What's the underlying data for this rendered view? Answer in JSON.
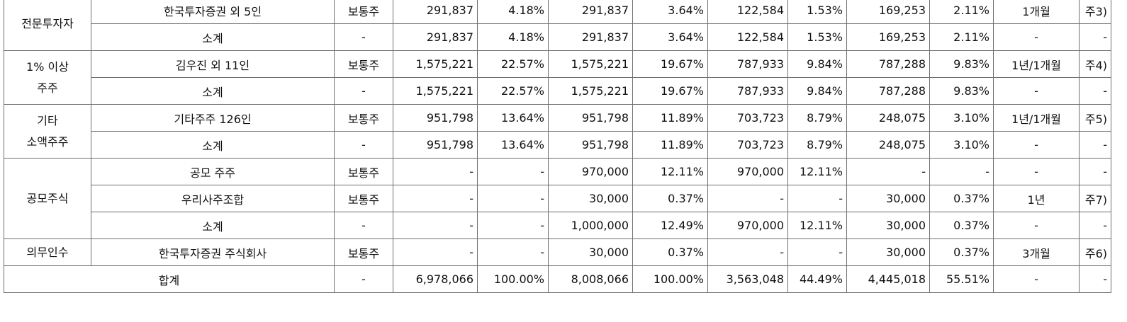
{
  "rows": [
    {
      "group": "전문투자자",
      "name": "한국투자증권 외 5인",
      "type": "보통주",
      "a": "291,837",
      "ap": "4.18%",
      "b": "291,837",
      "bp": "3.64%",
      "c": "122,584",
      "cp": "1.53%",
      "d": "169,253",
      "dp": "2.11%",
      "period": "1개월",
      "note": "주3)"
    },
    {
      "name": "소계",
      "type": "-",
      "a": "291,837",
      "ap": "4.18%",
      "b": "291,837",
      "bp": "3.64%",
      "c": "122,584",
      "cp": "1.53%",
      "d": "169,253",
      "dp": "2.11%",
      "period": "-",
      "note": "-"
    },
    {
      "group_line1": "1% 이상",
      "group_line2": "주주",
      "name": "김우진 외 11인",
      "type": "보통주",
      "a": "1,575,221",
      "ap": "22.57%",
      "b": "1,575,221",
      "bp": "19.67%",
      "c": "787,933",
      "cp": "9.84%",
      "d": "787,288",
      "dp": "9.83%",
      "period": "1년/1개월",
      "note": "주4)"
    },
    {
      "name": "소계",
      "type": "-",
      "a": "1,575,221",
      "ap": "22.57%",
      "b": "1,575,221",
      "bp": "19.67%",
      "c": "787,933",
      "cp": "9.84%",
      "d": "787,288",
      "dp": "9.83%",
      "period": "-",
      "note": "-"
    },
    {
      "group_line1": "기타",
      "group_line2": "소액주주",
      "name": "기타주주 126인",
      "type": "보통주",
      "a": "951,798",
      "ap": "13.64%",
      "b": "951,798",
      "bp": "11.89%",
      "c": "703,723",
      "cp": "8.79%",
      "d": "248,075",
      "dp": "3.10%",
      "period": "1년/1개월",
      "note": "주5)"
    },
    {
      "name": "소계",
      "type": "-",
      "a": "951,798",
      "ap": "13.64%",
      "b": "951,798",
      "bp": "11.89%",
      "c": "703,723",
      "cp": "8.79%",
      "d": "248,075",
      "dp": "3.10%",
      "period": "-",
      "note": "-"
    },
    {
      "group": "공모주식",
      "name": "공모 주주",
      "type": "보통주",
      "a": "-",
      "ap": "-",
      "b": "970,000",
      "bp": "12.11%",
      "c": "970,000",
      "cp": "12.11%",
      "d": "-",
      "dp": "-",
      "period": "-",
      "note": "-"
    },
    {
      "name": "우리사주조합",
      "type": "보통주",
      "a": "-",
      "ap": "-",
      "b": "30,000",
      "bp": "0.37%",
      "c": "-",
      "cp": "-",
      "d": "30,000",
      "dp": "0.37%",
      "period": "1년",
      "note": "주7)"
    },
    {
      "name": "소계",
      "type": "-",
      "a": "-",
      "ap": "-",
      "b": "1,000,000",
      "bp": "12.49%",
      "c": "970,000",
      "cp": "12.11%",
      "d": "30,000",
      "dp": "0.37%",
      "period": "-",
      "note": "-"
    },
    {
      "group": "의무인수",
      "name": "한국투자증권 주식회사",
      "type": "보통주",
      "a": "-",
      "ap": "-",
      "b": "30,000",
      "bp": "0.37%",
      "c": "-",
      "cp": "-",
      "d": "30,000",
      "dp": "0.37%",
      "period": "3개월",
      "note": "주6)"
    },
    {
      "total_label": "합계",
      "type": "-",
      "a": "6,978,066",
      "ap": "100.00%",
      "b": "8,008,066",
      "bp": "100.00%",
      "c": "3,563,048",
      "cp": "44.49%",
      "d": "4,445,018",
      "dp": "55.51%",
      "period": "-",
      "note": "-"
    }
  ]
}
